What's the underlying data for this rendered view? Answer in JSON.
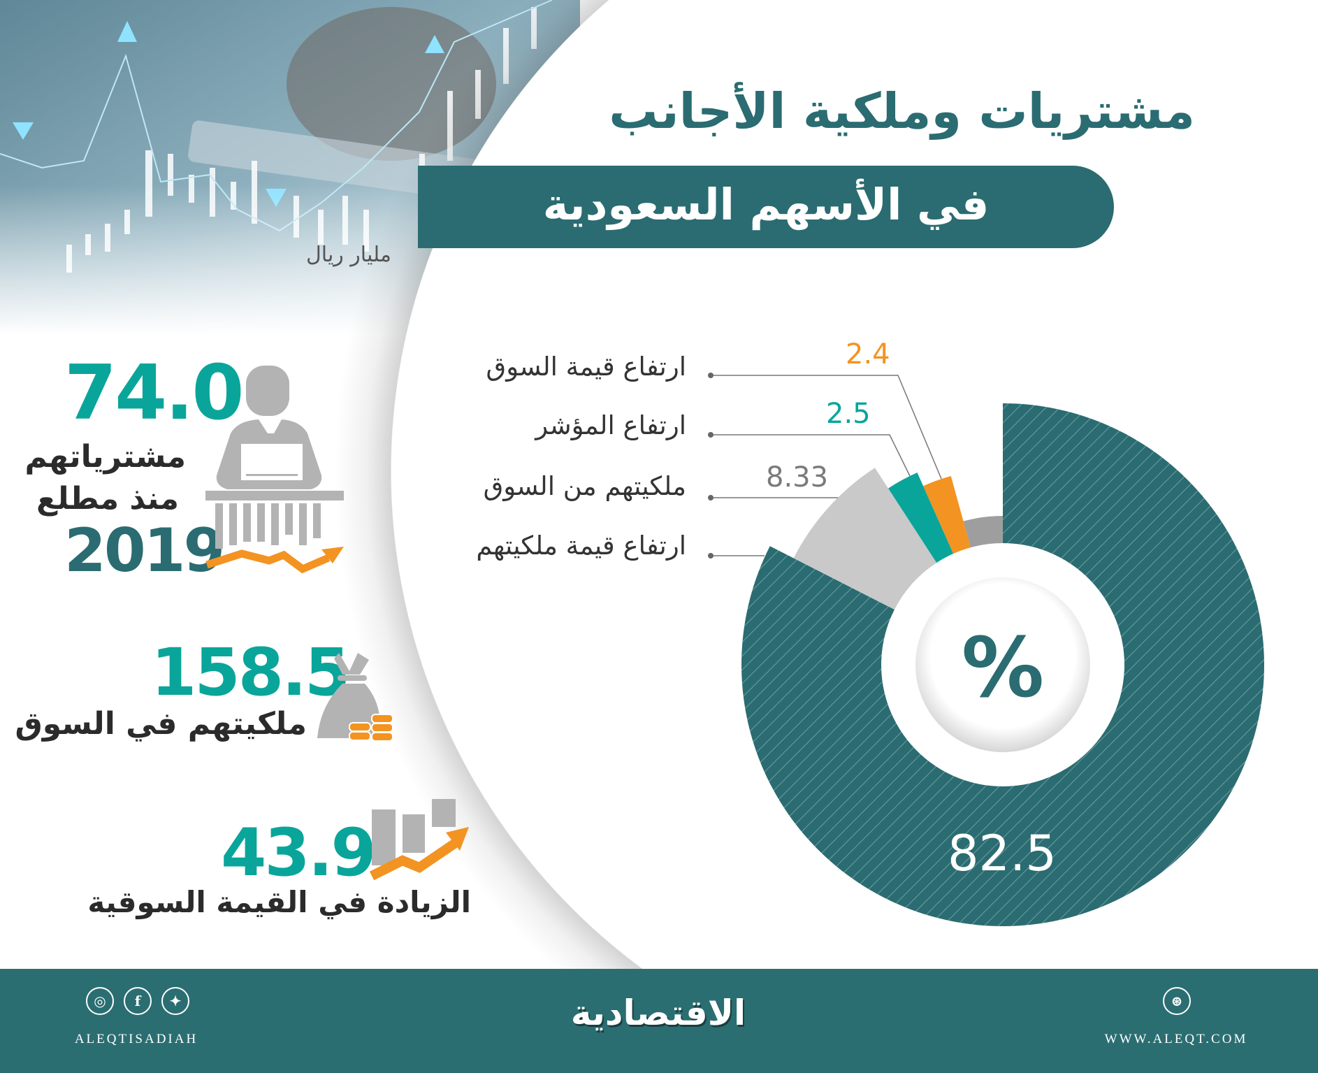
{
  "header": {
    "title_line1": "مشتريات وملكية الأجانب",
    "title_line2": "في الأسهم السعودية",
    "unit": "مليار ريال"
  },
  "stats": [
    {
      "value": "74.0",
      "label_line1": "مشترياتهم",
      "label_line2": "منذ مطلع",
      "year": "2019",
      "icon": "investor-at-desk-icon"
    },
    {
      "value": "158.5",
      "label": "ملكيتهم في السوق",
      "icon": "money-bag-icon"
    },
    {
      "value": "43.9",
      "label": "الزيادة في القيمة السوقية",
      "icon": "rising-bars-icon"
    }
  ],
  "chart_data": {
    "type": "pie",
    "style": "donut",
    "center_label": "%",
    "categories": [
      "ارتفاع قيمة السوق",
      "ارتفاع المؤشر",
      "ملكيتهم من السوق",
      "ارتفاع قيمة ملكيتهم"
    ],
    "values": [
      2.4,
      2.5,
      8.33,
      82.5
    ],
    "value_labels": [
      "2.4",
      "2.5",
      "8.33",
      "82.5"
    ],
    "colors": [
      "#f39321",
      "#0aa59a",
      "#c9c9c9",
      "#2a6c71"
    ],
    "remainder_color": "#9e9e9e"
  },
  "footer": {
    "logo": "الاقتصادية",
    "handle": "ALEQTISADIAH",
    "website": "WWW.ALEQT.COM",
    "social_icons": [
      "instagram-icon",
      "facebook-icon",
      "twitter-icon"
    ],
    "web_icon": "dribbble-icon"
  },
  "colors": {
    "primary": "#2a6c71",
    "accent_teal": "#0aa59a",
    "accent_orange": "#f39321",
    "gray": "#b3b3b3"
  }
}
